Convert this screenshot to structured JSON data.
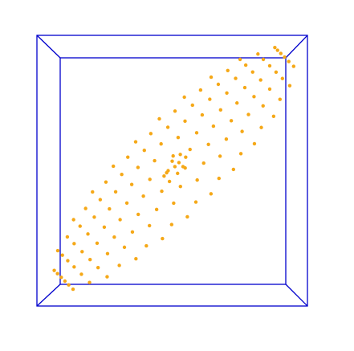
{
  "chart_data": {
    "type": "scatter",
    "color": "#f5a817",
    "xlim": [
      -1,
      1
    ],
    "ylim": [
      -1,
      1
    ],
    "x": [
      -0.733,
      -0.765,
      -0.793,
      -0.82,
      -0.848,
      -0.872,
      -0.611,
      -0.671,
      -0.725,
      -0.772,
      -0.812,
      -0.846,
      -0.481,
      -0.548,
      -0.607,
      -0.666,
      -0.725,
      -0.775,
      -0.391,
      -0.478,
      -0.555,
      -0.623,
      -0.681,
      -0.729,
      -0.268,
      -0.353,
      -0.428,
      -0.502,
      -0.576,
      -0.64,
      -0.191,
      -0.294,
      -0.385,
      -0.464,
      -0.532,
      -0.589,
      -0.072,
      -0.168,
      -0.251,
      -0.335,
      -0.418,
      -0.49,
      -0.004,
      -0.115,
      -0.213,
      -0.299,
      -0.373,
      -0.435,
      0.112,
      0.011,
      -0.077,
      -0.165,
      -0.253,
      -0.328,
      0.175,
      0.061,
      -0.041,
      -0.13,
      -0.206,
      -0.27,
      0.287,
      0.185,
      0.096,
      0.007,
      -0.082,
      -0.158,
      0.346,
      0.233,
      0.132,
      0.044,
      -0.032,
      -0.095,
      0.453,
      0.354,
      0.268,
      0.181,
      0.095,
      0.021,
      0.508,
      0.4,
      0.305,
      0.222,
      0.15,
      0.09,
      0.608,
      0.517,
      0.437,
      0.358,
      0.278,
      0.21,
      0.659,
      0.564,
      0.479,
      0.404,
      0.341,
      0.288,
      0.75,
      0.672,
      0.605,
      0.537,
      0.469,
      0.411,
      0.797,
      0.721,
      0.654,
      0.595,
      0.544,
      0.502,
      0.869,
      0.815,
      0.768,
      0.721,
      0.674,
      0.634,
      0.898,
      0.862,
      0.831,
      0.803,
      0.779,
      0.759,
      0.02,
      0.05,
      -0.03,
      0.08,
      0.0,
      0.04,
      -0.06,
      0.1,
      -0.02,
      0.06
    ],
    "values": [
      -0.876,
      -0.844,
      -0.816,
      -0.788,
      -0.761,
      -0.737,
      -0.826,
      -0.765,
      -0.711,
      -0.665,
      -0.624,
      -0.591,
      -0.784,
      -0.716,
      -0.657,
      -0.598,
      -0.539,
      -0.489,
      -0.7,
      -0.613,
      -0.536,
      -0.468,
      -0.41,
      -0.362,
      -0.651,
      -0.566,
      -0.491,
      -0.417,
      -0.343,
      -0.279,
      -0.555,
      -0.453,
      -0.362,
      -0.282,
      -0.214,
      -0.157,
      -0.502,
      -0.406,
      -0.323,
      -0.239,
      -0.156,
      -0.084,
      -0.398,
      -0.287,
      -0.188,
      -0.102,
      -0.028,
      0.033,
      -0.341,
      -0.24,
      -0.152,
      -0.064,
      0.024,
      0.1,
      -0.232,
      -0.117,
      -0.015,
      0.074,
      0.15,
      0.213,
      -0.171,
      -0.069,
      0.02,
      0.109,
      0.198,
      0.274,
      -0.057,
      0.056,
      0.157,
      0.245,
      0.321,
      0.383,
      0.009,
      0.107,
      0.194,
      0.28,
      0.366,
      0.44,
      0.126,
      0.233,
      0.329,
      0.412,
      0.484,
      0.543,
      0.199,
      0.29,
      0.369,
      0.449,
      0.528,
      0.596,
      0.319,
      0.415,
      0.5,
      0.574,
      0.638,
      0.691,
      0.402,
      0.479,
      0.547,
      0.614,
      0.682,
      0.74,
      0.527,
      0.603,
      0.67,
      0.729,
      0.78,
      0.822,
      0.628,
      0.681,
      0.728,
      0.775,
      0.822,
      0.862,
      0.771,
      0.807,
      0.839,
      0.866,
      0.89,
      0.91,
      0.03,
      0.06,
      0.0,
      0.03,
      0.07,
      -0.02,
      -0.04,
      0.1,
      -0.08,
      0.12
    ]
  }
}
